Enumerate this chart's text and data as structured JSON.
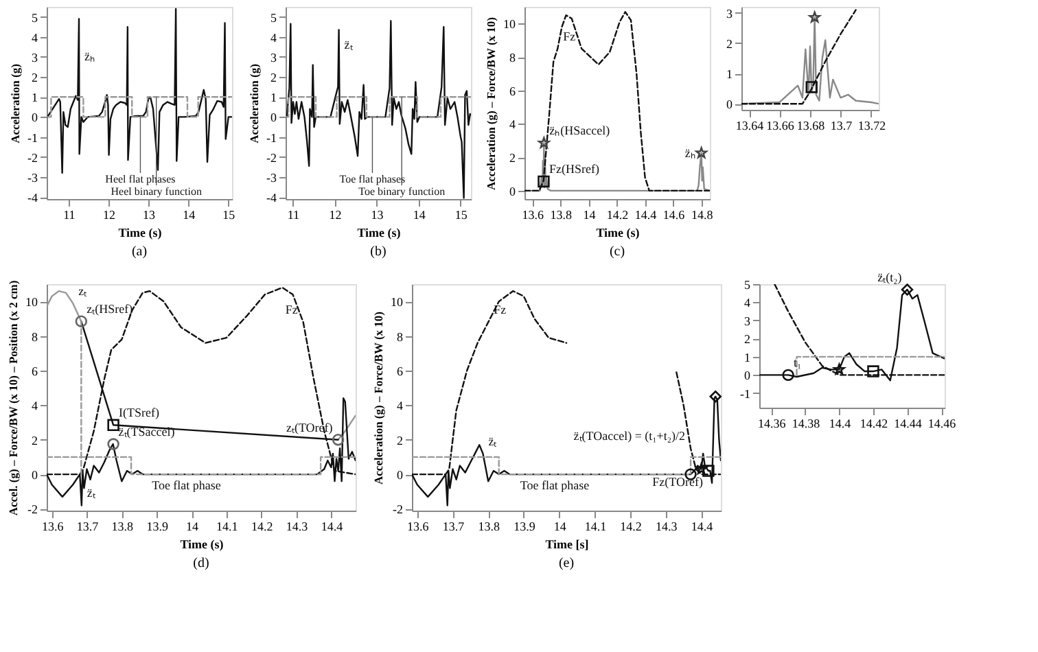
{
  "chart_data": [
    {
      "type": "line",
      "xlabel": "Time (s)",
      "ylabel": "Acceleration (g)",
      "xlim": [
        10.45,
        15.1
      ],
      "ylim": [
        -4.1,
        5.5
      ],
      "xticks": [
        11,
        12,
        13,
        14,
        15
      ],
      "yticks": [
        -4,
        -3,
        -2,
        -1,
        0,
        1,
        2,
        3,
        4,
        5
      ],
      "series": [
        {
          "type": "line",
          "color": "#111111",
          "line_style": "solid",
          "x": [
            10.47,
            10.55,
            10.76,
            10.79,
            10.84,
            10.87,
            10.92,
            10.98,
            11.05,
            11.12,
            11.18,
            11.23,
            11.26,
            11.27,
            11.32,
            11.37,
            11.48,
            11.76,
            11.84,
            11.94,
            11.96,
            11.99,
            12.01,
            12.05,
            12.12,
            12.19,
            12.3,
            12.41,
            12.46,
            12.48,
            12.49,
            12.55,
            12.69,
            12.87,
            12.94,
            13.0,
            13.05,
            13.12,
            13.24,
            13.28,
            13.37,
            13.48,
            13.59,
            13.66,
            13.69,
            13.71,
            13.76,
            13.91,
            14.19,
            14.26,
            14.39,
            14.44,
            14.48,
            14.54,
            14.62,
            14.73,
            14.84,
            14.89,
            14.92,
            14.94,
            15.01,
            15.1
          ],
          "values": [
            0,
            0.25,
            0.9,
            0.75,
            -2.8,
            0.25,
            -0.4,
            -0.5,
            0.4,
            0.75,
            1.05,
            0.85,
            4.9,
            -1.85,
            0,
            -0.25,
            0,
            0.05,
            0.25,
            0.9,
            1.1,
            0.6,
            -1.9,
            -0.1,
            0.4,
            0.6,
            0.75,
            0.7,
            0.6,
            4.5,
            -2.15,
            0,
            0.05,
            0.05,
            0.25,
            0.9,
            1.0,
            0.4,
            -2.65,
            0.25,
            0.6,
            0.75,
            0.65,
            0.6,
            5.4,
            -2.2,
            0,
            0,
            0.05,
            0.25,
            1.35,
            0.9,
            -2.25,
            0.1,
            0.35,
            0.8,
            0.75,
            0.5,
            4.7,
            -1.1,
            0,
            0
          ]
        },
        {
          "type": "line",
          "color": "#999999",
          "line_style": "dashed",
          "x": [
            10.47,
            10.56,
            10.56,
            11.37,
            11.37,
            11.92,
            11.92,
            12.59,
            12.59,
            12.98,
            12.98,
            13.98,
            13.98,
            14.25,
            14.25,
            15.1
          ],
          "values": [
            0,
            0,
            1,
            1,
            0,
            0,
            1,
            1,
            0,
            0,
            1,
            1,
            0,
            0,
            1,
            1
          ]
        }
      ],
      "annotations": [
        {
          "text": "z̈ₕ",
          "x": 11.26,
          "y": 2.4
        },
        {
          "text": "Heel binary function",
          "x": 13.2,
          "y": 1
        },
        {
          "text": "Heel flat phases",
          "x": 12.8,
          "y": 0
        },
        "(a)"
      ]
    },
    {
      "type": "line",
      "xlabel": "Time (s)",
      "ylabel": "Acceleration (g)",
      "xlim": [
        10.83,
        15.25
      ],
      "ylim": [
        -4.1,
        5.5
      ],
      "xticks": [
        11,
        12,
        13,
        14,
        15
      ],
      "yticks": [
        -4,
        -3,
        -2,
        -1,
        0,
        1,
        2,
        3,
        4,
        5
      ],
      "series": [
        {
          "type": "line",
          "color": "#111111",
          "line_style": "solid",
          "x": [
            10.83,
            10.86,
            10.92,
            10.95,
            10.97,
            11.01,
            11.05,
            11.09,
            11.14,
            11.21,
            11.28,
            11.34,
            11.39,
            11.41,
            11.46,
            11.48,
            11.51,
            11.55,
            11.9,
            12.03,
            12.08,
            12.1,
            12.12,
            12.17,
            12.24,
            12.31,
            12.38,
            12.48,
            12.55,
            12.59,
            12.64,
            12.69,
            12.72,
            12.78,
            13.21,
            13.31,
            13.34,
            13.37,
            13.41,
            13.47,
            13.53,
            13.59,
            13.69,
            13.76,
            13.83,
            13.86,
            13.9,
            13.93,
            13.97,
            14.02,
            14.45,
            14.55,
            14.6,
            14.63,
            14.69,
            14.76,
            14.86,
            14.93,
            15.0,
            15.03,
            15.08,
            15.11,
            15.15,
            15.19,
            15.23,
            15.25
          ],
          "values": [
            0,
            0,
            1.45,
            4.65,
            -0.3,
            0.75,
            0.15,
            0.75,
            -0.1,
            0.75,
            0,
            -1.2,
            -2.45,
            0.4,
            0,
            2.6,
            -0.5,
            0,
            0,
            1.1,
            1.5,
            4.35,
            -0.35,
            0.75,
            0.25,
            0.85,
            0.1,
            -1.0,
            -1.95,
            0.25,
            -0.1,
            1.6,
            -0.1,
            0,
            0,
            1.45,
            4.8,
            -0.4,
            0.95,
            0.4,
            0.75,
            0.1,
            -0.6,
            -1.35,
            -1.85,
            0.4,
            -0.1,
            1.75,
            -0.25,
            0,
            0,
            1.5,
            4.5,
            -0.4,
            0.95,
            0.4,
            0.75,
            0,
            -0.95,
            -1.25,
            -4.05,
            1.1,
            1.3,
            -0.4,
            0.15,
            0.1
          ]
        },
        {
          "type": "line",
          "color": "#999999",
          "line_style": "dashed",
          "x": [
            10.83,
            10.9,
            10.9,
            11.55,
            11.55,
            12.05,
            12.05,
            12.76,
            12.76,
            13.31,
            13.31,
            13.97,
            13.97,
            14.53,
            14.53,
            15.25
          ],
          "values": [
            0,
            0,
            1,
            1,
            0,
            0,
            1,
            1,
            0,
            0,
            1,
            1,
            0,
            0,
            1,
            1
          ]
        }
      ],
      "annotations": [
        {
          "text": "z̈ₜ",
          "x": 12.1,
          "y": 3.0
        },
        {
          "text": "Toe binary function",
          "x": 13.6,
          "y": 1
        },
        {
          "text": "Toe flat phases",
          "x": 12.9,
          "y": 0
        },
        "(b)"
      ]
    },
    {
      "type": "line",
      "xlabel": "Time (s)",
      "ylabel": "Acceleration (g) – Force/BW (x 10)",
      "xlim": [
        13.545,
        14.86
      ],
      "ylim": [
        -0.5,
        11
      ],
      "xticks": [
        13.6,
        13.8,
        14,
        14.2,
        14.4,
        14.6,
        14.8
      ],
      "yticks": [
        0,
        2,
        4,
        6,
        8,
        10
      ],
      "series": [
        {
          "type": "line",
          "color": "#888888",
          "line_style": "solid",
          "x": [
            13.545,
            13.655,
            13.665,
            13.672,
            13.676,
            13.68,
            13.683,
            13.686,
            13.69,
            13.695,
            13.7,
            13.71,
            13.73,
            14.77,
            14.78,
            14.79,
            14.8,
            14.805,
            14.81,
            14.82,
            14.86
          ],
          "values": [
            0,
            0,
            0.8,
            0.3,
            1.8,
            0.5,
            2.85,
            0.2,
            2.1,
            0.3,
            0.8,
            0.1,
            0,
            0,
            0.3,
            1.5,
            2.25,
            0.6,
            1.4,
            0.1,
            0
          ]
        },
        {
          "type": "line",
          "color": "#111111",
          "line_style": "dashed",
          "x": [
            13.545,
            13.65,
            13.68,
            13.72,
            13.75,
            13.78,
            13.81,
            13.84,
            13.88,
            13.95,
            14.07,
            14.15,
            14.22,
            14.26,
            14.3,
            14.34,
            14.37,
            14.4,
            14.43,
            14.86
          ],
          "values": [
            0,
            0,
            0.6,
            4.5,
            7.7,
            8.5,
            9.8,
            10.5,
            10.3,
            8.5,
            7.55,
            8.3,
            10.1,
            10.7,
            10.2,
            7.0,
            3.5,
            0.8,
            0,
            0
          ]
        },
        {
          "type": "scatter",
          "color": "#444444",
          "marker": "star",
          "x": [
            13.683,
            14.8
          ],
          "values": [
            2.85,
            2.25
          ]
        },
        {
          "type": "scatter",
          "color": "#111111",
          "marker": "square",
          "x": [
            13.681
          ],
          "values": [
            0.55
          ]
        }
      ],
      "annotations": [
        {
          "text": "Fz",
          "x": 13.78,
          "y": 8.5
        },
        {
          "text": "z̈ₕ(HSaccel)",
          "x": 13.683,
          "y": 2.85
        },
        {
          "text": "Fz(HSref)",
          "x": 13.681,
          "y": 0.55
        },
        {
          "text": "z̈ₕ",
          "x": 14.8,
          "y": 1.5
        },
        "(c)"
      ]
    },
    {
      "type": "line",
      "xlim": [
        13.635,
        13.725
      ],
      "ylim": [
        -0.2,
        3.2
      ],
      "xticks": [
        13.64,
        13.66,
        13.68,
        13.7,
        13.72
      ],
      "yticks": [
        0,
        1,
        2,
        3
      ],
      "series": [
        {
          "type": "line",
          "color": "#888888",
          "line_style": "solid",
          "x": [
            13.635,
            13.66,
            13.672,
            13.675,
            13.677,
            13.679,
            13.68,
            13.681,
            13.682,
            13.683,
            13.684,
            13.686,
            13.688,
            13.69,
            13.693,
            13.695,
            13.7,
            13.705,
            13.71,
            13.72,
            13.725
          ],
          "values": [
            0,
            0.05,
            0.6,
            0.2,
            1.8,
            0.3,
            1.9,
            0.4,
            0.6,
            2.85,
            0.3,
            0.1,
            1.5,
            2.1,
            0.2,
            0.8,
            0.2,
            0.3,
            0.1,
            0.05,
            0
          ]
        },
        {
          "type": "line",
          "color": "#111111",
          "line_style": "dashed",
          "x": [
            13.635,
            13.675,
            13.68,
            13.69,
            13.7,
            13.71
          ],
          "values": [
            0,
            0,
            0.4,
            1.4,
            2.3,
            3.1
          ]
        },
        {
          "type": "scatter",
          "color": "#444444",
          "marker": "star",
          "x": [
            13.683
          ],
          "values": [
            2.85
          ]
        },
        {
          "type": "scatter",
          "color": "#111111",
          "marker": "square",
          "x": [
            13.681
          ],
          "values": [
            0.55
          ]
        }
      ]
    },
    {
      "type": "line",
      "xlabel": "Time (s)",
      "ylabel": "Accel. (g) – Force/BW (x 10) – Position (x 2 cm)",
      "xlim": [
        13.585,
        14.47
      ],
      "ylim": [
        -2.1,
        11
      ],
      "xticks": [
        13.6,
        13.7,
        13.8,
        13.9,
        14,
        14.1,
        14.2,
        14.3,
        14.4
      ],
      "yticks": [
        -2,
        0,
        2,
        4,
        6,
        8,
        10
      ],
      "series": [
        {
          "type": "line",
          "color": "#999999",
          "line_style": "solid",
          "x": [
            13.585,
            13.6,
            13.62,
            13.64,
            13.66,
            13.684,
            13.73,
            14.42,
            14.44,
            14.46,
            14.47
          ],
          "values": [
            9.7,
            10.3,
            10.6,
            10.5,
            9.9,
            8.85,
            null,
            2.0,
            2.5,
            3.1,
            3.4
          ]
        },
        {
          "type": "line",
          "color": "#111111",
          "line_style": "solid",
          "x": [
            13.684,
            13.776,
            14.42
          ],
          "values": [
            8.85,
            2.85,
            2.0
          ]
        },
        {
          "type": "line",
          "color": "#111111",
          "line_style": "dashed",
          "x": [
            13.585,
            13.68,
            13.69,
            13.72,
            13.75,
            13.77,
            13.8,
            13.83,
            13.86,
            13.88,
            13.92,
            13.97,
            14.04,
            14.1,
            14.16,
            14.21,
            14.26,
            14.29,
            14.32,
            14.35,
            14.38,
            14.41,
            14.47
          ],
          "values": [
            0,
            0,
            0.3,
            2.5,
            5.5,
            7.2,
            7.8,
            9.5,
            10.5,
            10.6,
            10.0,
            8.5,
            7.6,
            7.9,
            9.2,
            10.4,
            10.8,
            10.4,
            8.8,
            5.5,
            2.5,
            0.2,
            0
          ]
        },
        {
          "type": "line",
          "color": "#111111",
          "line_style": "solid",
          "x": [
            13.585,
            13.6,
            13.63,
            13.66,
            13.68,
            13.685,
            13.688,
            13.692,
            13.7,
            13.71,
            13.72,
            13.735,
            13.75,
            13.765,
            13.775,
            13.785,
            13.8,
            13.815,
            13.83,
            13.845,
            13.86,
            14.36,
            14.38,
            14.39,
            14.4,
            14.405,
            14.41,
            14.415,
            14.42,
            14.425,
            14.43,
            14.435,
            14.44,
            14.45,
            14.46,
            14.47
          ],
          "values": [
            0,
            -0.6,
            -1.3,
            -0.6,
            0,
            -1.8,
            0.2,
            -0.8,
            0.3,
            -0.3,
            0.5,
            0.1,
            0.7,
            1.4,
            1.75,
            0.8,
            -0.4,
            0.2,
            0,
            0.2,
            0,
            0,
            0.3,
            0.8,
            0.4,
            1.2,
            -0.4,
            0.9,
            0.2,
            1.5,
            -0.4,
            4.4,
            4.2,
            0.9,
            1.3,
            0.8
          ]
        },
        {
          "type": "line",
          "color": "#999999",
          "line_style": "dashed",
          "x": [
            13.585,
            13.827,
            13.827,
            14.37,
            14.37,
            14.47
          ],
          "values": [
            1,
            1,
            0,
            0,
            1,
            1
          ]
        },
        {
          "type": "line",
          "color": "#999999",
          "line_style": "dashed",
          "x": [
            13.684,
            13.684
          ],
          "values": [
            0,
            8.85
          ]
        },
        {
          "type": "scatter",
          "color": "#666666",
          "marker": "circle",
          "x": [
            13.684,
            13.776,
            14.42
          ],
          "values": [
            8.85,
            1.75,
            2.0
          ]
        },
        {
          "type": "scatter",
          "color": "#111111",
          "marker": "square",
          "x": [
            13.776
          ],
          "values": [
            2.85
          ]
        }
      ],
      "annotations": [
        {
          "text": "zₜ",
          "x": 13.66,
          "y": 9.9
        },
        {
          "text": "Fz",
          "x": 14.32,
          "y": 8.8
        },
        {
          "text": "zₜ(HSref)",
          "x": 13.684,
          "y": 8.85
        },
        {
          "text": "I(TSref)",
          "x": 13.776,
          "y": 2.85
        },
        {
          "text": "z̈ₜ(TSaccel)",
          "x": 13.775,
          "y": 1.75
        },
        {
          "text": "zₜ(TOref)",
          "x": 14.42,
          "y": 2.0
        },
        {
          "text": "z̈ₜ",
          "x": 13.685,
          "y": -1.8
        },
        {
          "text": "Toe flat phase",
          "x": 14.1,
          "y": 0
        },
        "(d)"
      ]
    },
    {
      "type": "line",
      "xlabel": "Time [s]",
      "ylabel": "Acceleration (g) – Force/BW (x 10)",
      "xlim": [
        13.585,
        14.455
      ],
      "ylim": [
        -2.1,
        11
      ],
      "xticks": [
        13.6,
        13.7,
        13.8,
        13.9,
        14,
        14.1,
        14.2,
        14.3,
        14.4
      ],
      "yticks": [
        -2,
        0,
        2,
        4,
        6,
        8,
        10
      ],
      "series": [
        {
          "type": "line",
          "color": "#111111",
          "line_style": "dashed",
          "x": [
            13.585,
            13.68,
            13.69,
            13.71,
            13.74,
            13.77,
            13.8,
            13.83,
            13.87,
            13.9,
            13.93,
            13.97,
            14.02,
            14.1,
            14.33,
            14.35,
            14.37,
            14.385,
            14.4,
            14.455
          ],
          "values": [
            0,
            0,
            0.3,
            3.7,
            6.0,
            7.6,
            8.8,
            10.0,
            10.6,
            10.3,
            9.0,
            7.9,
            7.6,
            null,
            5.9,
            4.0,
            1.5,
            0.3,
            0,
            0
          ]
        },
        {
          "type": "line",
          "color": "#111111",
          "line_style": "solid",
          "x": [
            13.585,
            13.6,
            13.63,
            13.66,
            13.68,
            13.685,
            13.688,
            13.692,
            13.7,
            13.71,
            13.72,
            13.735,
            13.75,
            13.765,
            13.775,
            13.785,
            13.8,
            13.815,
            13.83,
            13.845,
            13.86,
            14.36,
            14.37,
            14.38,
            14.39,
            14.4,
            14.405,
            14.41,
            14.42,
            14.425,
            14.43,
            14.437,
            14.44,
            14.445,
            14.45,
            14.455
          ],
          "values": [
            0,
            -0.6,
            -1.3,
            -0.6,
            0,
            -1.8,
            0.2,
            -0.8,
            0.3,
            -0.3,
            0.5,
            0.1,
            0.7,
            1.3,
            1.7,
            1.2,
            -0.4,
            0.2,
            0,
            0.2,
            0,
            0,
            0,
            0.2,
            0.5,
            0.3,
            1.2,
            0.5,
            0.2,
            0.2,
            -0.5,
            4.4,
            4.5,
            4.3,
            2,
            0.8
          ]
        },
        {
          "type": "line",
          "color": "#999999",
          "line_style": "dashed",
          "x": [
            13.585,
            13.83,
            13.83,
            14.37,
            14.37,
            14.455
          ],
          "values": [
            1,
            1,
            0,
            0,
            1,
            1
          ]
        },
        {
          "type": "scatter",
          "color": "#111111",
          "marker": "circle",
          "x": [
            14.37
          ],
          "values": [
            0
          ]
        },
        {
          "type": "scatter",
          "color": "#111111",
          "marker": "star",
          "x": [
            14.4
          ],
          "values": [
            0.3
          ]
        },
        {
          "type": "scatter",
          "color": "#111111",
          "marker": "square",
          "x": [
            14.42
          ],
          "values": [
            0.2
          ]
        },
        {
          "type": "scatter",
          "color": "#111111",
          "marker": "diamond",
          "x": [
            14.44
          ],
          "values": [
            4.5
          ]
        }
      ],
      "annotations": [
        {
          "text": "Fz",
          "x": 13.8,
          "y": 8.8
        },
        {
          "text": "z̈ₜ",
          "x": 13.785,
          "y": 1.2
        },
        {
          "text": "Toe flat phase",
          "x": 14.1,
          "y": 0
        },
        {
          "text": "Fz(TOref)",
          "x": 14.42,
          "y": 0.2
        },
        {
          "text": "z̈ₜ(TOaccel) = (t₁+t₂)/2",
          "x": 14.37,
          "y": 1.5
        },
        "(e)"
      ]
    },
    {
      "type": "line",
      "xlim": [
        14.353,
        14.462
      ],
      "ylim": [
        -1.8,
        5
      ],
      "xticks": [
        14.36,
        14.38,
        14.4,
        14.42,
        14.44,
        14.46
      ],
      "yticks": [
        -1,
        0,
        1,
        2,
        3,
        4,
        5
      ],
      "series": [
        {
          "type": "line",
          "color": "#111111",
          "line_style": "solid",
          "x": [
            14.353,
            14.365,
            14.37,
            14.375,
            14.385,
            14.39,
            14.395,
            14.4,
            14.403,
            14.406,
            14.41,
            14.415,
            14.42,
            14.425,
            14.43,
            14.434,
            14.437,
            14.44,
            14.443,
            14.446,
            14.45,
            14.455,
            14.462
          ],
          "values": [
            0,
            0,
            0,
            -0.1,
            0.1,
            0.4,
            0.3,
            0.3,
            1.0,
            1.2,
            0.6,
            0.2,
            0.2,
            0.3,
            -0.3,
            1.5,
            4.4,
            4.7,
            4.2,
            4.4,
            3.0,
            1.2,
            0.9
          ]
        },
        {
          "type": "line",
          "color": "#111111",
          "line_style": "dashed",
          "x": [
            14.362,
            14.37,
            14.38,
            14.39,
            14.4,
            14.462
          ],
          "values": [
            5,
            3.5,
            1.8,
            0.5,
            0,
            0
          ]
        },
        {
          "type": "line",
          "color": "#999999",
          "line_style": "dashed",
          "x": [
            14.375,
            14.375,
            14.462
          ],
          "values": [
            0,
            1,
            1
          ]
        },
        {
          "type": "scatter",
          "color": "#111111",
          "marker": "circle",
          "x": [
            14.37
          ],
          "values": [
            0
          ]
        },
        {
          "type": "scatter",
          "color": "#111111",
          "marker": "star",
          "x": [
            14.4
          ],
          "values": [
            0.3
          ]
        },
        {
          "type": "scatter",
          "color": "#111111",
          "marker": "square",
          "x": [
            14.42
          ],
          "values": [
            0.2
          ]
        },
        {
          "type": "scatter",
          "color": "#111111",
          "marker": "diamond",
          "x": [
            14.44
          ],
          "values": [
            4.7
          ]
        }
      ],
      "annotations": [
        {
          "text": "t₁",
          "x": 14.37,
          "y": 0
        },
        {
          "text": "z̈ₜ(t₂)",
          "x": 14.44,
          "y": 4.7
        }
      ]
    }
  ]
}
